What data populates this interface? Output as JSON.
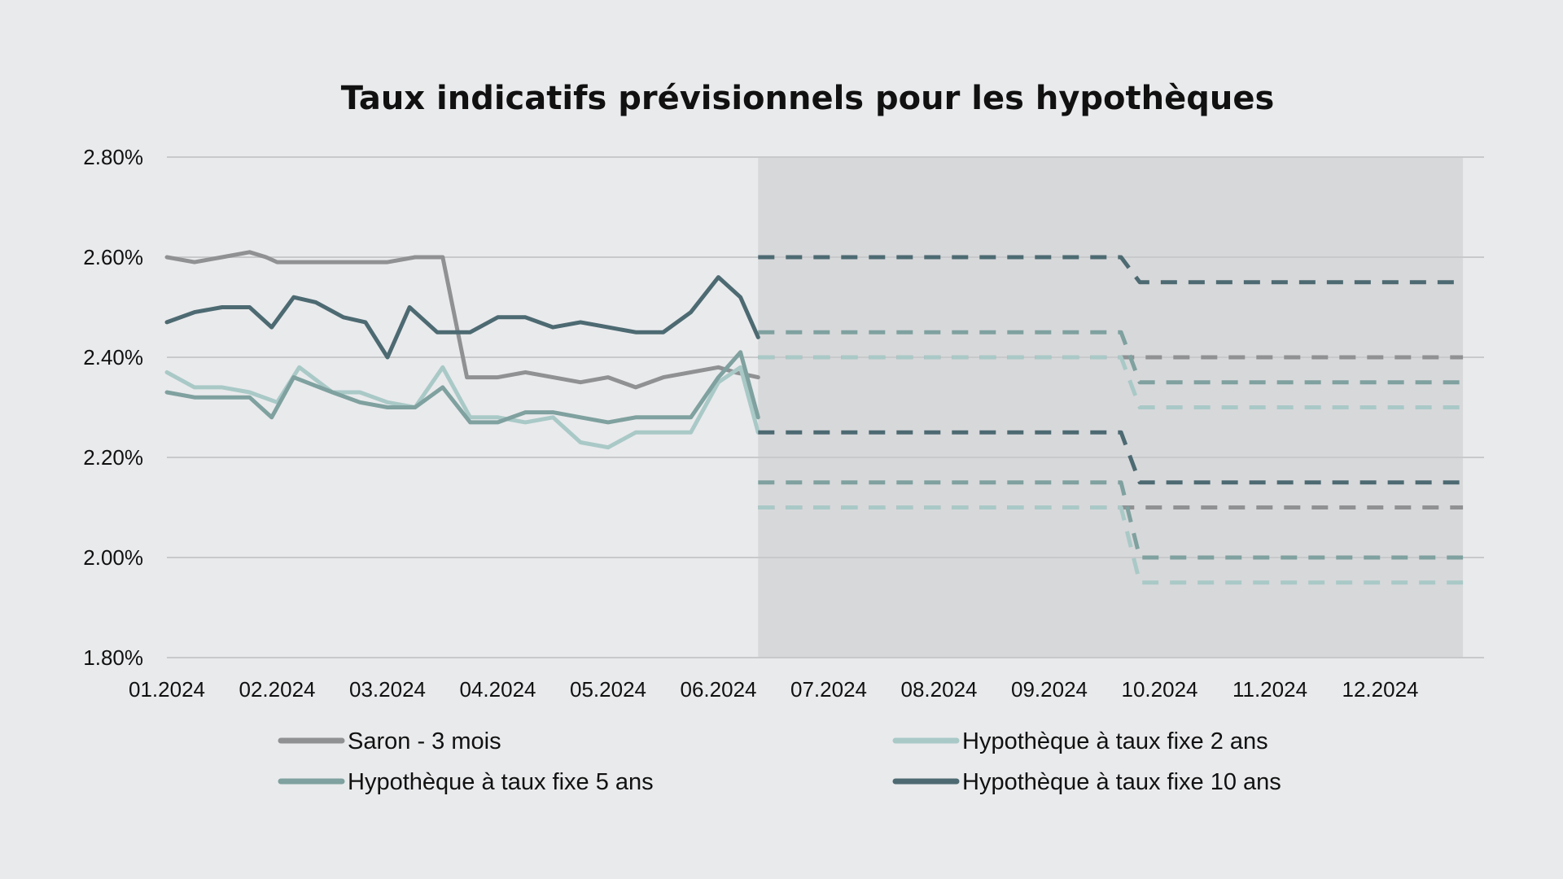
{
  "chart_data": {
    "type": "line",
    "title": "Taux indicatifs prévisionnels pour les hypothèques",
    "xlabel": "",
    "ylabel": "",
    "x_ticks": [
      "01.2024",
      "02.2024",
      "03.2024",
      "04.2024",
      "05.2024",
      "06.2024",
      "07.2024",
      "08.2024",
      "09.2024",
      "10.2024",
      "11.2024",
      "12.2024"
    ],
    "y_ticks": [
      "1.80%",
      "2.00%",
      "2.20%",
      "2.40%",
      "2.60%",
      "2.80%"
    ],
    "ylim": [
      1.8,
      2.8
    ],
    "xlim": [
      0,
      11.75
    ],
    "forecast_region": [
      5.36,
      11.75
    ],
    "grid": "horizontal",
    "legend_position": "bottom",
    "colors": {
      "saron": "#8f9193",
      "fix2": "#a9c9c7",
      "fix5": "#7fa19f",
      "fix10": "#4d6a72",
      "forecast_bg": "#d7d8da",
      "grid": "#c8c9cb"
    },
    "series": [
      {
        "key": "saron",
        "name": "Saron - 3 mois",
        "color": "#8f9193",
        "legend": {
          "col": 0,
          "row": 0
        },
        "history": [
          [
            0,
            2.6
          ],
          [
            0.25,
            2.59
          ],
          [
            0.5,
            2.6
          ],
          [
            0.75,
            2.61
          ],
          [
            0.9,
            2.6
          ],
          [
            1.0,
            2.59
          ],
          [
            1.5,
            2.59
          ],
          [
            2.0,
            2.59
          ],
          [
            2.25,
            2.6
          ],
          [
            2.5,
            2.6
          ],
          [
            2.72,
            2.36
          ],
          [
            3.0,
            2.36
          ],
          [
            3.25,
            2.37
          ],
          [
            3.5,
            2.36
          ],
          [
            3.75,
            2.35
          ],
          [
            4.0,
            2.36
          ],
          [
            4.25,
            2.34
          ],
          [
            4.5,
            2.36
          ],
          [
            4.75,
            2.37
          ],
          [
            5.0,
            2.38
          ],
          [
            5.15,
            2.37
          ],
          [
            5.36,
            2.36
          ]
        ],
        "forecast": [
          [
            [
              5.36,
              2.4
            ],
            [
              11.75,
              2.4
            ]
          ],
          [
            [
              5.36,
              2.1
            ],
            [
              11.75,
              2.1
            ]
          ]
        ]
      },
      {
        "key": "fix2",
        "name": "Hypothèque à taux fixe 2 ans",
        "color": "#a9c9c7",
        "legend": {
          "col": 1,
          "row": 0
        },
        "history": [
          [
            0,
            2.37
          ],
          [
            0.25,
            2.34
          ],
          [
            0.5,
            2.34
          ],
          [
            0.75,
            2.33
          ],
          [
            1.0,
            2.31
          ],
          [
            1.2,
            2.38
          ],
          [
            1.5,
            2.33
          ],
          [
            1.75,
            2.33
          ],
          [
            2.0,
            2.31
          ],
          [
            2.25,
            2.3
          ],
          [
            2.5,
            2.38
          ],
          [
            2.75,
            2.28
          ],
          [
            3.0,
            2.28
          ],
          [
            3.25,
            2.27
          ],
          [
            3.5,
            2.28
          ],
          [
            3.75,
            2.23
          ],
          [
            4.0,
            2.22
          ],
          [
            4.25,
            2.25
          ],
          [
            4.5,
            2.25
          ],
          [
            4.75,
            2.25
          ],
          [
            5.0,
            2.35
          ],
          [
            5.2,
            2.38
          ],
          [
            5.36,
            2.25
          ]
        ],
        "forecast": [
          [
            [
              5.36,
              2.4
            ],
            [
              8.65,
              2.4
            ],
            [
              8.82,
              2.3
            ],
            [
              11.75,
              2.3
            ]
          ],
          [
            [
              5.36,
              2.1
            ],
            [
              8.65,
              2.1
            ],
            [
              8.82,
              1.95
            ],
            [
              11.75,
              1.95
            ]
          ]
        ]
      },
      {
        "key": "fix5",
        "name": "Hypothèque à taux fixe 5 ans",
        "color": "#7fa19f",
        "legend": {
          "col": 0,
          "row": 1
        },
        "history": [
          [
            0,
            2.33
          ],
          [
            0.25,
            2.32
          ],
          [
            0.5,
            2.32
          ],
          [
            0.75,
            2.32
          ],
          [
            0.95,
            2.28
          ],
          [
            1.15,
            2.36
          ],
          [
            1.5,
            2.33
          ],
          [
            1.75,
            2.31
          ],
          [
            2.0,
            2.3
          ],
          [
            2.25,
            2.3
          ],
          [
            2.5,
            2.34
          ],
          [
            2.75,
            2.27
          ],
          [
            3.0,
            2.27
          ],
          [
            3.25,
            2.29
          ],
          [
            3.5,
            2.29
          ],
          [
            3.75,
            2.28
          ],
          [
            4.0,
            2.27
          ],
          [
            4.25,
            2.28
          ],
          [
            4.5,
            2.28
          ],
          [
            4.75,
            2.28
          ],
          [
            5.0,
            2.36
          ],
          [
            5.2,
            2.41
          ],
          [
            5.36,
            2.28
          ]
        ],
        "forecast": [
          [
            [
              5.36,
              2.45
            ],
            [
              8.65,
              2.45
            ],
            [
              8.82,
              2.35
            ],
            [
              11.75,
              2.35
            ]
          ],
          [
            [
              5.36,
              2.15
            ],
            [
              8.65,
              2.15
            ],
            [
              8.82,
              2.0
            ],
            [
              11.75,
              2.0
            ]
          ]
        ]
      },
      {
        "key": "fix10",
        "name": "Hypothèque à taux fixe 10 ans",
        "color": "#4d6a72",
        "legend": {
          "col": 1,
          "row": 1
        },
        "history": [
          [
            0,
            2.47
          ],
          [
            0.25,
            2.49
          ],
          [
            0.5,
            2.5
          ],
          [
            0.75,
            2.5
          ],
          [
            0.95,
            2.46
          ],
          [
            1.15,
            2.52
          ],
          [
            1.35,
            2.51
          ],
          [
            1.6,
            2.48
          ],
          [
            1.8,
            2.47
          ],
          [
            2.0,
            2.4
          ],
          [
            2.2,
            2.5
          ],
          [
            2.45,
            2.45
          ],
          [
            2.75,
            2.45
          ],
          [
            3.0,
            2.48
          ],
          [
            3.25,
            2.48
          ],
          [
            3.5,
            2.46
          ],
          [
            3.75,
            2.47
          ],
          [
            4.0,
            2.46
          ],
          [
            4.25,
            2.45
          ],
          [
            4.5,
            2.45
          ],
          [
            4.75,
            2.49
          ],
          [
            5.0,
            2.56
          ],
          [
            5.2,
            2.52
          ],
          [
            5.36,
            2.44
          ]
        ],
        "forecast": [
          [
            [
              5.36,
              2.6
            ],
            [
              8.65,
              2.6
            ],
            [
              8.82,
              2.55
            ],
            [
              11.75,
              2.55
            ]
          ],
          [
            [
              5.36,
              2.25
            ],
            [
              8.65,
              2.25
            ],
            [
              8.82,
              2.15
            ],
            [
              11.75,
              2.15
            ]
          ]
        ]
      }
    ]
  }
}
